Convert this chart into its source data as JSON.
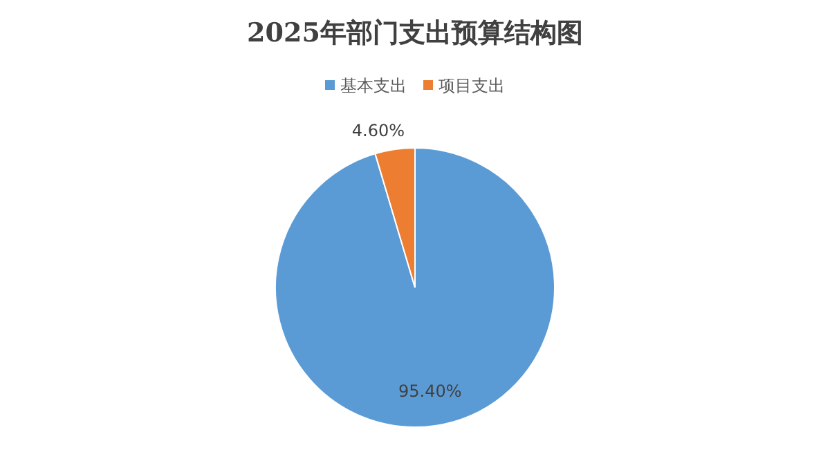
{
  "chart_data": {
    "type": "pie",
    "title": "2025年部门支出预算结构图",
    "categories": [
      "基本支出",
      "项目支出"
    ],
    "values": [
      95.4,
      4.6
    ],
    "colors": [
      "#5b9bd5",
      "#ed7d31"
    ],
    "value_labels": [
      "95.40%",
      "4.60%"
    ],
    "legend": "top"
  }
}
